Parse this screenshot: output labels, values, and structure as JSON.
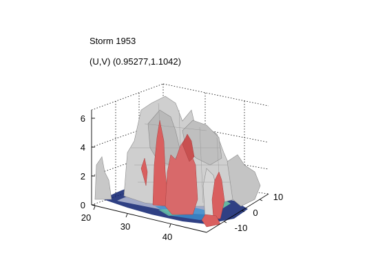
{
  "chart_data": {
    "type": "surface3d",
    "title_lines": [
      "Storm 1953",
      "(U,V) (0.95277,1.1042)"
    ],
    "axes": {
      "x": {
        "ticks": [
          "20",
          "30",
          "40"
        ],
        "range": [
          20,
          47
        ]
      },
      "y": {
        "ticks": [
          "-10",
          "0",
          "10"
        ],
        "range": [
          -14,
          14
        ]
      },
      "z": {
        "ticks": [
          "0",
          "2",
          "4",
          "6"
        ],
        "range": [
          0,
          6.5
        ]
      }
    },
    "grid": true,
    "colors": {
      "surface": "#c8c8c8",
      "surface_edge": "#8a8a8a",
      "peak": "#d95f5f",
      "floor_dark": "#0a1f6e",
      "floor_mid": "#3b8fd0",
      "floor_light": "#6cc4a4"
    }
  }
}
